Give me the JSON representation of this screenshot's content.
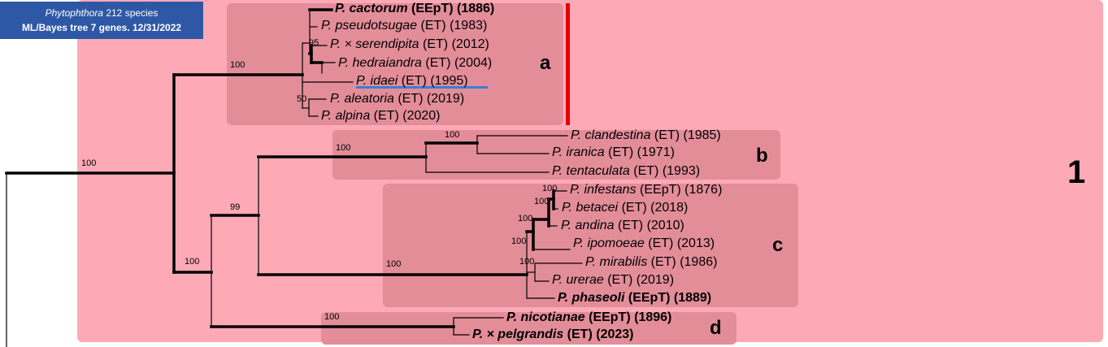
{
  "header": {
    "genus": "Phytophthora",
    "title_rest": " 212 species",
    "subtitle": "ML/Bayes tree 7 genes. 12/31/2022"
  },
  "clade": {
    "label": "1",
    "color": "#fea9b6"
  },
  "subclades": [
    {
      "id": "a",
      "label": "a",
      "color": "#e38d99"
    },
    {
      "id": "b",
      "label": "b",
      "color": "#e38d99"
    },
    {
      "id": "c",
      "label": "c",
      "color": "#e38d99"
    },
    {
      "id": "d",
      "label": "d",
      "color": "#e38d99"
    }
  ],
  "taxa": [
    {
      "id": "cactorum",
      "genus": "P.",
      "epithet": "cactorum",
      "status": "(EEpT)",
      "year": "(1886)",
      "type_species": true
    },
    {
      "id": "pseudotsugae",
      "genus": "P.",
      "epithet": "pseudotsugae",
      "status": "(ET)",
      "year": "(1983)",
      "type_species": false
    },
    {
      "id": "serendipita",
      "genus": "P.",
      "epithet": "× serendipita",
      "status": "(ET)",
      "year": "(2012)",
      "type_species": false
    },
    {
      "id": "hedraiandra",
      "genus": "P.",
      "epithet": "hedraiandra",
      "status": "(ET)",
      "year": "(2004)",
      "type_species": false
    },
    {
      "id": "idaei",
      "genus": "P.",
      "epithet": "idaei",
      "status": "(ET)",
      "year": "(1995)",
      "type_species": false,
      "highlighted": true
    },
    {
      "id": "aleatoria",
      "genus": "P.",
      "epithet": "aleatoria",
      "status": "(ET)",
      "year": "(2019)",
      "type_species": false
    },
    {
      "id": "alpina",
      "genus": "P.",
      "epithet": "alpina",
      "status": "(ET)",
      "year": "(2020)",
      "type_species": false
    },
    {
      "id": "clandestina",
      "genus": "P.",
      "epithet": "clandestina",
      "status": "(ET)",
      "year": "(1985)",
      "type_species": false
    },
    {
      "id": "iranica",
      "genus": "P.",
      "epithet": "iranica",
      "status": "(ET)",
      "year": "(1971)",
      "type_species": false
    },
    {
      "id": "tentaculata",
      "genus": "P.",
      "epithet": "tentaculata",
      "status": "(ET)",
      "year": "(1993)",
      "type_species": false
    },
    {
      "id": "infestans",
      "genus": "P.",
      "epithet": "infestans",
      "status": "(EEpT)",
      "year": "(1876)",
      "type_species": false
    },
    {
      "id": "betacei",
      "genus": "P.",
      "epithet": "betacei",
      "status": "(ET)",
      "year": "(2018)",
      "type_species": false
    },
    {
      "id": "andina",
      "genus": "P.",
      "epithet": "andina",
      "status": "(ET)",
      "year": "(2010)",
      "type_species": false
    },
    {
      "id": "ipomoeae",
      "genus": "P.",
      "epithet": "ipomoeae",
      "status": "(ET)",
      "year": "(2013)",
      "type_species": false
    },
    {
      "id": "mirabilis",
      "genus": "P.",
      "epithet": "mirabilis",
      "status": "(ET)",
      "year": "(1986)",
      "type_species": false
    },
    {
      "id": "urerae",
      "genus": "P.",
      "epithet": "urerae",
      "status": "(ET)",
      "year": "(2019)",
      "type_species": false
    },
    {
      "id": "phaseoli",
      "genus": "P.",
      "epithet": "phaseoli",
      "status": "(EEpT)",
      "year": "(1889)",
      "type_species": true
    },
    {
      "id": "nicotianae",
      "genus": "P.",
      "epithet": "nicotianae",
      "status": "(EEpT)",
      "year": "(1896)",
      "type_species": true
    },
    {
      "id": "pelgrandis",
      "genus": "P.",
      "epithet": "× pelgrandis",
      "status": "(ET)",
      "year": "(2023)",
      "type_species": true
    }
  ],
  "support_values": [
    {
      "id": "root",
      "value": "100"
    },
    {
      "id": "a_stem",
      "value": "100"
    },
    {
      "id": "serendipita_node",
      "value": "95"
    },
    {
      "id": "aleatoria_node",
      "value": "50"
    },
    {
      "id": "bcd_node",
      "value": "100"
    },
    {
      "id": "bc_node",
      "value": "99"
    },
    {
      "id": "b_stem",
      "value": "100"
    },
    {
      "id": "clandestina_iranica",
      "value": "100"
    },
    {
      "id": "c_stem",
      "value": "100"
    },
    {
      "id": "c_inner1",
      "value": "100"
    },
    {
      "id": "c_inner2",
      "value": "100"
    },
    {
      "id": "c_inner3",
      "value": "100"
    },
    {
      "id": "c_inner4",
      "value": "100"
    },
    {
      "id": "c_inner5",
      "value": "100"
    },
    {
      "id": "d_stem",
      "value": "100"
    }
  ],
  "colors": {
    "type_species_underline": "#3b7ed0",
    "red_marker": "#e60000",
    "badge": "#2e58a6"
  }
}
